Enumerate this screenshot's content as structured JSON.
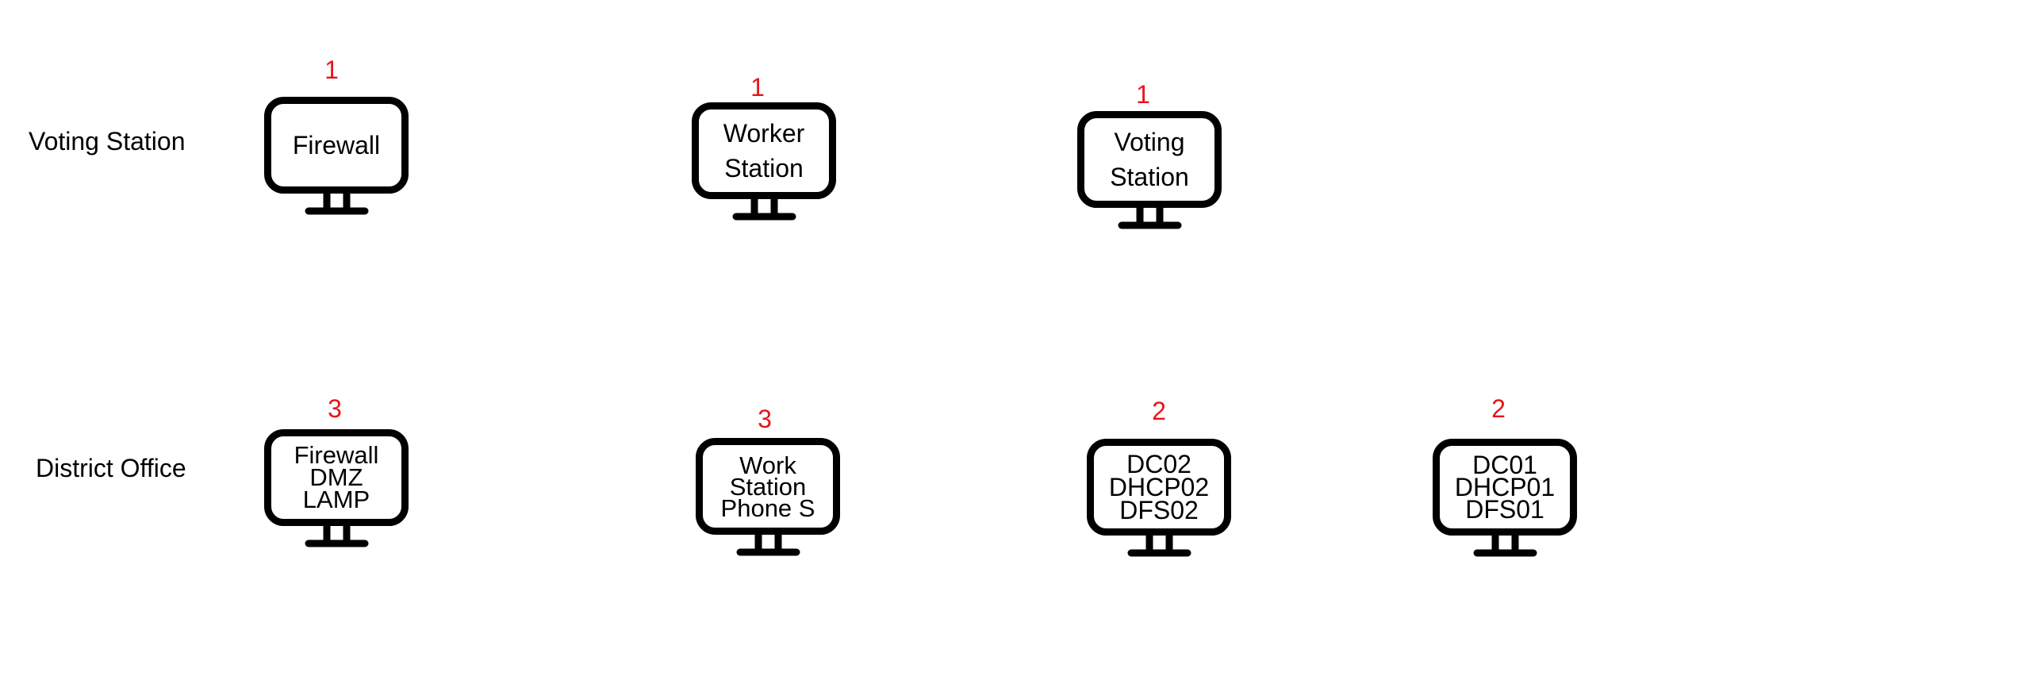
{
  "rows": {
    "voting": {
      "label": "Voting Station"
    },
    "district": {
      "label": "District Office"
    }
  },
  "colors": {
    "count": "#e8141b",
    "outline": "#000000",
    "text": "#000000"
  },
  "devices": [
    {
      "id": "vs-firewall",
      "count": "1",
      "lines": [
        "Firewall"
      ],
      "icon": "monitor-icon"
    },
    {
      "id": "vs-worker-station",
      "count": "1",
      "lines": [
        "Worker",
        "Station"
      ],
      "icon": "monitor-icon"
    },
    {
      "id": "vs-voting-station",
      "count": "1",
      "lines": [
        "Voting",
        "Station"
      ],
      "icon": "monitor-icon"
    },
    {
      "id": "do-firewall",
      "count": "3",
      "lines": [
        "Firewall",
        "DMZ",
        "LAMP"
      ],
      "icon": "monitor-icon"
    },
    {
      "id": "do-workstation",
      "count": "3",
      "lines": [
        "Work",
        "Station",
        "Phone S"
      ],
      "icon": "monitor-icon"
    },
    {
      "id": "do-dc02",
      "count": "2",
      "lines": [
        "DC02",
        "DHCP02",
        "DFS02"
      ],
      "icon": "monitor-icon"
    },
    {
      "id": "do-dc01",
      "count": "2",
      "lines": [
        "DC01",
        "DHCP01",
        "DFS01"
      ],
      "icon": "monitor-icon"
    }
  ]
}
